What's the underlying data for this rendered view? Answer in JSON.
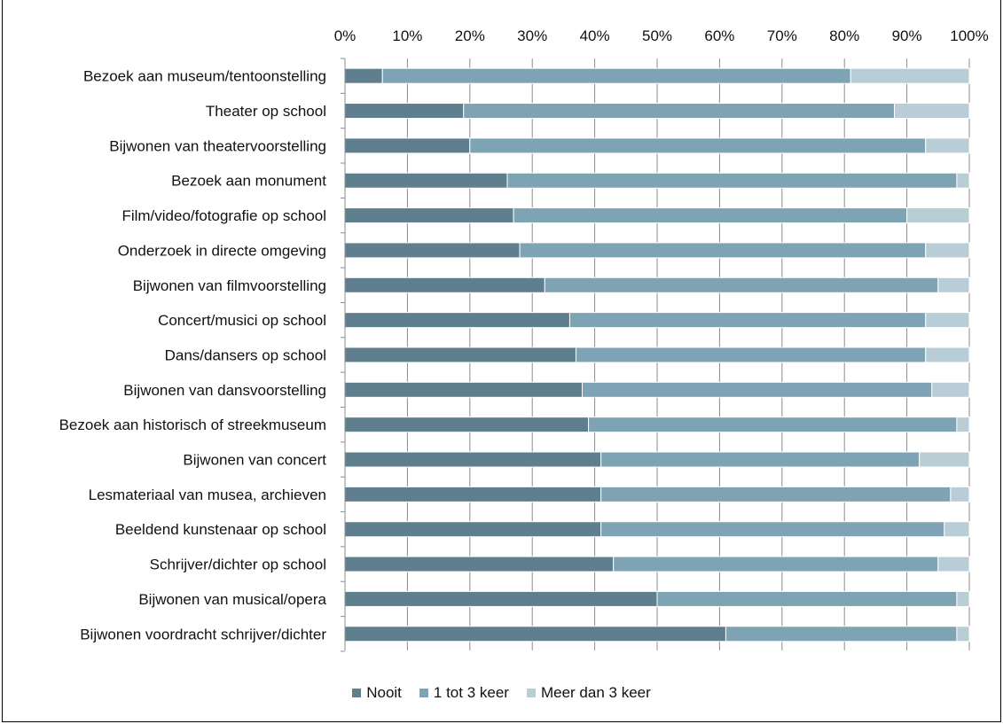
{
  "chart_data": {
    "type": "bar",
    "orientation": "horizontal",
    "stacked": true,
    "title": "",
    "xlabel": "",
    "ylabel": "",
    "xlim": [
      0,
      100
    ],
    "x_ticks": [
      "0%",
      "10%",
      "20%",
      "30%",
      "40%",
      "50%",
      "60%",
      "70%",
      "80%",
      "90%",
      "100%"
    ],
    "grid": true,
    "legend_position": "bottom",
    "categories": [
      "Bezoek aan museum/tentoonstelling",
      "Theater op school",
      "Bijwonen van theatervoorstelling",
      "Bezoek aan monument",
      "Film/video/fotografie op school",
      "Onderzoek in directe omgeving",
      "Bijwonen van filmvoorstelling",
      "Concert/musici op school",
      "Dans/dansers op school",
      "Bijwonen van dansvoorstelling",
      "Bezoek aan historisch of streekmuseum",
      "Bijwonen van concert",
      "Lesmateriaal van musea, archieven",
      "Beeldend kunstenaar op school",
      "Schrijver/dichter op school",
      "Bijwonen van musical/opera",
      "Bijwonen voordracht schrijver/dichter"
    ],
    "series": [
      {
        "name": "Nooit",
        "color": "#5f7f8f",
        "values": [
          6,
          19,
          20,
          26,
          27,
          28,
          32,
          36,
          37,
          38,
          39,
          41,
          41,
          41,
          43,
          50,
          61
        ]
      },
      {
        "name": "1 tot 3 keer",
        "color": "#7ea3b4",
        "values": [
          75,
          69,
          73,
          72,
          63,
          65,
          63,
          57,
          56,
          56,
          59,
          51,
          56,
          55,
          52,
          48,
          37
        ]
      },
      {
        "name": "Meer dan 3 keer",
        "color": "#b9cdd6",
        "values": [
          19,
          12,
          7,
          2,
          10,
          7,
          5,
          7,
          7,
          6,
          2,
          8,
          3,
          4,
          5,
          2,
          2
        ]
      }
    ]
  }
}
